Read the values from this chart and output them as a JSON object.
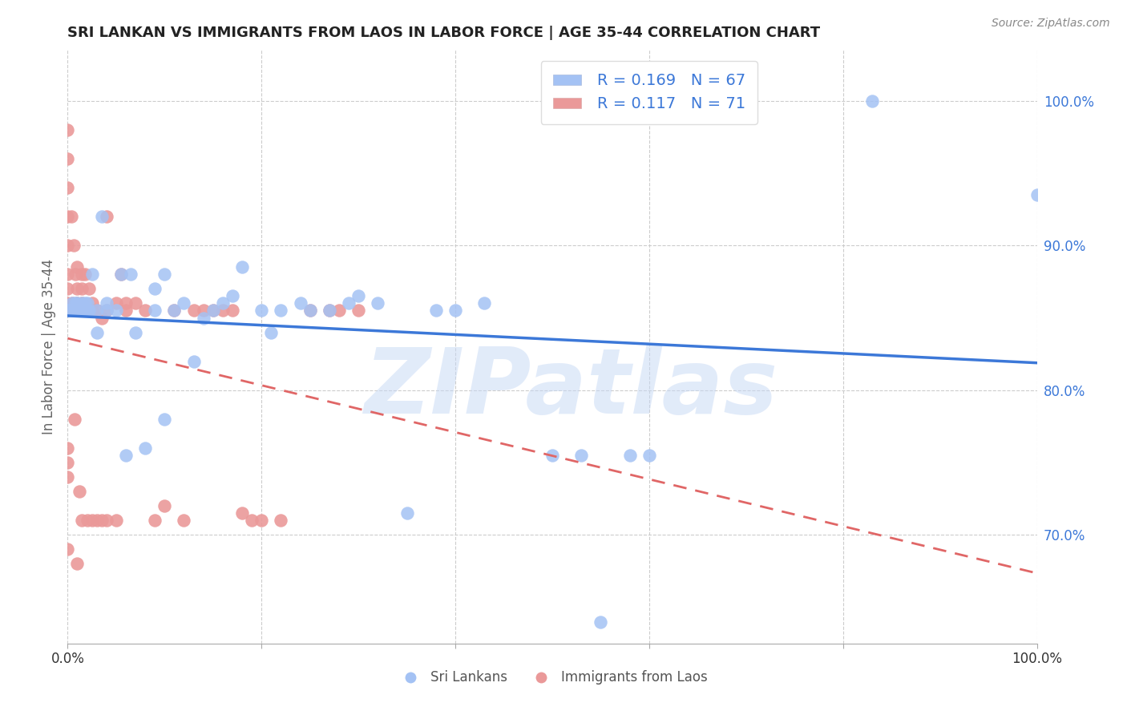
{
  "title": "SRI LANKAN VS IMMIGRANTS FROM LAOS IN LABOR FORCE | AGE 35-44 CORRELATION CHART",
  "source": "Source: ZipAtlas.com",
  "ylabel": "In Labor Force | Age 35-44",
  "xlim": [
    0.0,
    1.0
  ],
  "ylim": [
    0.625,
    1.035
  ],
  "blue_color": "#a4c2f4",
  "pink_color": "#ea9999",
  "blue_line_color": "#3c78d8",
  "pink_line_color": "#e06666",
  "R_blue": 0.169,
  "N_blue": 67,
  "R_pink": 0.117,
  "N_pink": 71,
  "watermark_text": "ZIPatlas",
  "background_color": "#ffffff",
  "grid_color": "#cccccc",
  "blue_scatter_x": [
    0.0,
    0.0,
    0.0,
    0.003,
    0.003,
    0.005,
    0.005,
    0.007,
    0.008,
    0.008,
    0.01,
    0.01,
    0.01,
    0.01,
    0.012,
    0.013,
    0.015,
    0.015,
    0.017,
    0.018,
    0.02,
    0.02,
    0.022,
    0.025,
    0.03,
    0.03,
    0.035,
    0.04,
    0.04,
    0.05,
    0.055,
    0.06,
    0.065,
    0.07,
    0.08,
    0.09,
    0.09,
    0.1,
    0.1,
    0.11,
    0.12,
    0.13,
    0.14,
    0.15,
    0.16,
    0.17,
    0.18,
    0.2,
    0.21,
    0.22,
    0.24,
    0.25,
    0.27,
    0.29,
    0.3,
    0.32,
    0.35,
    0.38,
    0.4,
    0.43,
    0.5,
    0.53,
    0.55,
    0.58,
    0.6,
    0.83,
    1.0
  ],
  "blue_scatter_y": [
    0.855,
    0.855,
    0.855,
    0.855,
    0.855,
    0.855,
    0.86,
    0.855,
    0.855,
    0.86,
    0.855,
    0.855,
    0.855,
    0.86,
    0.855,
    0.855,
    0.855,
    0.86,
    0.855,
    0.86,
    0.855,
    0.86,
    0.855,
    0.88,
    0.855,
    0.84,
    0.92,
    0.855,
    0.86,
    0.855,
    0.88,
    0.755,
    0.88,
    0.84,
    0.76,
    0.87,
    0.855,
    0.88,
    0.78,
    0.855,
    0.86,
    0.82,
    0.85,
    0.855,
    0.86,
    0.865,
    0.885,
    0.855,
    0.84,
    0.855,
    0.86,
    0.855,
    0.855,
    0.86,
    0.865,
    0.86,
    0.715,
    0.855,
    0.855,
    0.86,
    0.755,
    0.755,
    0.64,
    0.755,
    0.755,
    1.0,
    0.935
  ],
  "pink_scatter_x": [
    0.0,
    0.0,
    0.0,
    0.0,
    0.0,
    0.0,
    0.0,
    0.0,
    0.003,
    0.004,
    0.005,
    0.005,
    0.006,
    0.007,
    0.008,
    0.01,
    0.01,
    0.01,
    0.012,
    0.013,
    0.015,
    0.015,
    0.015,
    0.016,
    0.018,
    0.02,
    0.022,
    0.025,
    0.025,
    0.03,
    0.035,
    0.04,
    0.04,
    0.05,
    0.055,
    0.06,
    0.06,
    0.07,
    0.08,
    0.09,
    0.1,
    0.11,
    0.12,
    0.13,
    0.14,
    0.15,
    0.16,
    0.17,
    0.18,
    0.19,
    0.2,
    0.22,
    0.25,
    0.27,
    0.28,
    0.3,
    0.0,
    0.0,
    0.0,
    0.0,
    0.0,
    0.0,
    0.0,
    0.01,
    0.015,
    0.02,
    0.025,
    0.03,
    0.035,
    0.04,
    0.05
  ],
  "pink_scatter_y": [
    0.855,
    0.855,
    0.855,
    0.86,
    0.87,
    0.88,
    0.9,
    0.92,
    0.855,
    0.92,
    0.855,
    0.86,
    0.9,
    0.78,
    0.88,
    0.86,
    0.87,
    0.885,
    0.73,
    0.855,
    0.88,
    0.87,
    0.86,
    0.855,
    0.88,
    0.855,
    0.87,
    0.86,
    0.855,
    0.855,
    0.85,
    0.855,
    0.92,
    0.86,
    0.88,
    0.855,
    0.86,
    0.86,
    0.855,
    0.71,
    0.72,
    0.855,
    0.71,
    0.855,
    0.855,
    0.855,
    0.855,
    0.855,
    0.715,
    0.71,
    0.71,
    0.71,
    0.855,
    0.855,
    0.855,
    0.855,
    0.98,
    0.96,
    0.94,
    0.76,
    0.75,
    0.74,
    0.69,
    0.68,
    0.71,
    0.71,
    0.71,
    0.71,
    0.71,
    0.71,
    0.71
  ]
}
